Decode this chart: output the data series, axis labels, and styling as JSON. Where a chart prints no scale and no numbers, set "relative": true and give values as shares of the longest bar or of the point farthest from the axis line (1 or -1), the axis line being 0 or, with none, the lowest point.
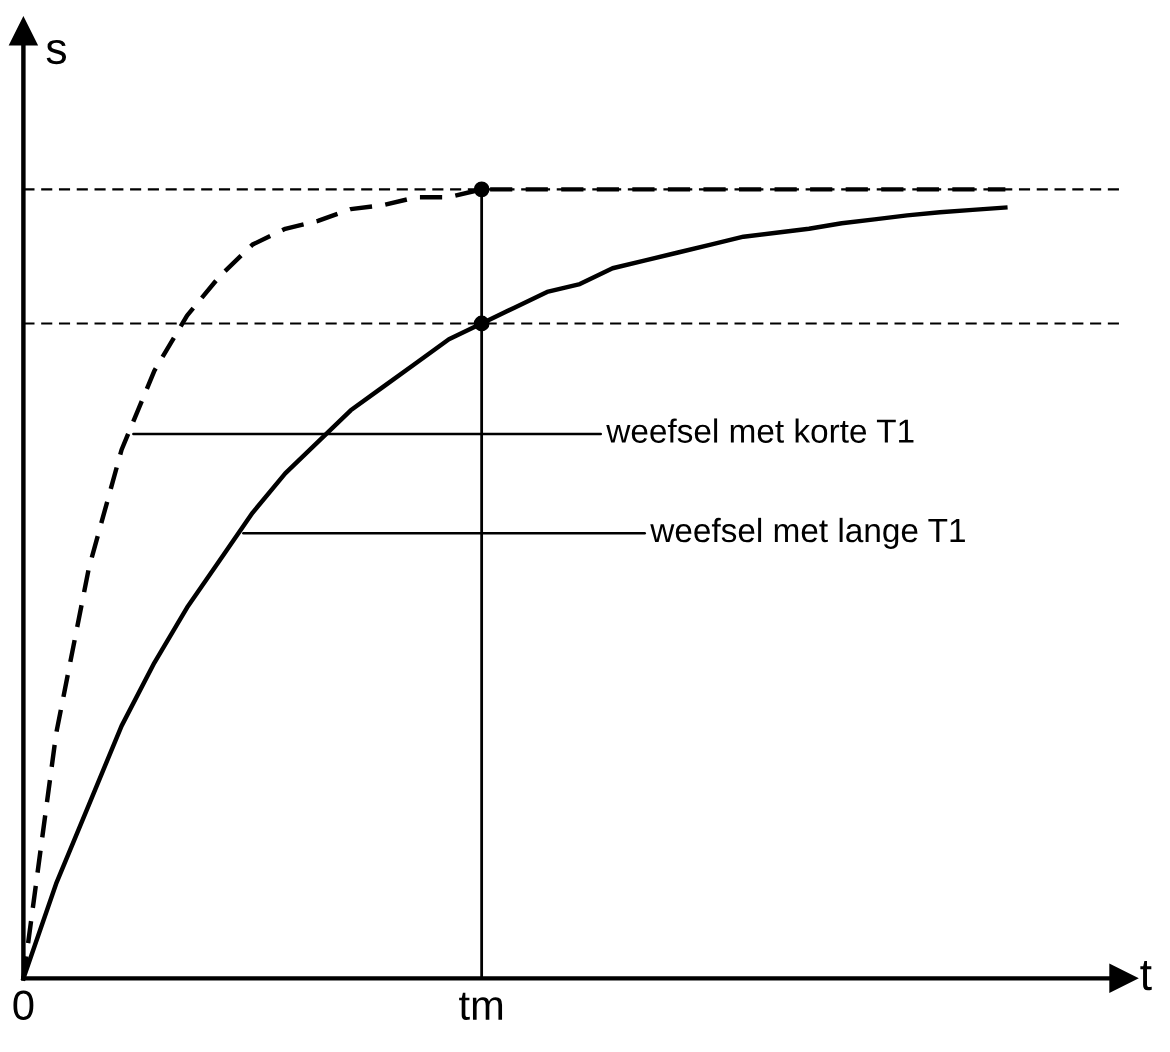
{
  "chart_data": {
    "type": "line",
    "relative": true,
    "xlabel": "t",
    "ylabel": "s",
    "categories": [
      "0",
      null,
      null,
      null,
      null,
      null,
      null,
      null,
      null,
      null,
      null,
      null,
      null,
      null,
      "tm",
      null,
      null,
      null,
      null,
      null,
      null,
      null,
      null,
      null,
      null,
      null,
      null,
      null,
      null,
      null,
      null
    ],
    "tick_labels": "x",
    "grid": false,
    "legend": false,
    "series": [
      {
        "color": "#000000",
        "line_style": "solid",
        "values": [
          0,
          0.12,
          0.22,
          0.32,
          0.4,
          0.47,
          0.53,
          0.59,
          0.64,
          0.68,
          0.72,
          0.75,
          0.78,
          0.81,
          0.83,
          0.85,
          0.87,
          0.88,
          0.9,
          0.91,
          0.92,
          0.93,
          0.94,
          0.945,
          0.95,
          0.957,
          0.962,
          0.967,
          0.971,
          0.974,
          0.977
        ]
      },
      {
        "color": "#000000",
        "line_style": "dashed",
        "values": [
          0,
          0.31,
          0.52,
          0.67,
          0.77,
          0.84,
          0.89,
          0.93,
          0.95,
          0.96,
          0.975,
          0.98,
          0.99,
          0.99,
          1,
          1,
          1,
          1,
          1,
          1,
          1,
          1,
          1,
          1,
          1,
          1,
          1,
          1,
          1,
          1,
          1
        ]
      },
      {
        "color": "#000000",
        "line_style": "solid",
        "x": [
          "tm",
          "tm"
        ],
        "values": [
          0,
          1
        ]
      },
      {
        "type": "scatter",
        "color": "#000000",
        "marker": "circle",
        "x": [
          "tm",
          "tm"
        ],
        "values": [
          1,
          0.83
        ]
      }
    ],
    "ref_lines": [
      {
        "axis": "y",
        "value": 1,
        "line_style": "dashed",
        "color": "#000000"
      },
      {
        "axis": "y",
        "value": 0.83,
        "line_style": "dashed",
        "color": "#000000"
      }
    ],
    "annotations": [
      "weefsel met korte T1",
      "weefsel met lange T1"
    ]
  }
}
